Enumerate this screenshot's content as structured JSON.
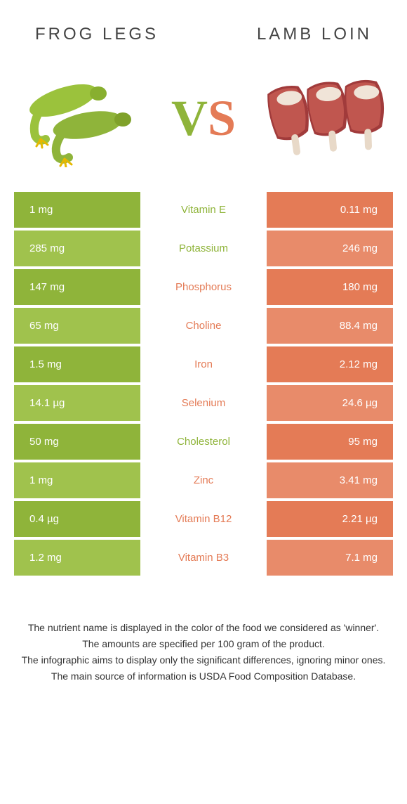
{
  "colors": {
    "green_dark": "#8fb43a",
    "green_light": "#a0c24d",
    "orange_dark": "#e47b56",
    "orange_light": "#e88b6a",
    "text": "#444444"
  },
  "header": {
    "left": "Frog legs",
    "right": "Lamb loin"
  },
  "vs": {
    "v": "V",
    "s": "S"
  },
  "rows": [
    {
      "left": "1 mg",
      "mid": "Vitamin E",
      "right": "0.11 mg",
      "winner": "left"
    },
    {
      "left": "285 mg",
      "mid": "Potassium",
      "right": "246 mg",
      "winner": "left"
    },
    {
      "left": "147 mg",
      "mid": "Phosphorus",
      "right": "180 mg",
      "winner": "right"
    },
    {
      "left": "65 mg",
      "mid": "Choline",
      "right": "88.4 mg",
      "winner": "right"
    },
    {
      "left": "1.5 mg",
      "mid": "Iron",
      "right": "2.12 mg",
      "winner": "right"
    },
    {
      "left": "14.1 µg",
      "mid": "Selenium",
      "right": "24.6 µg",
      "winner": "right"
    },
    {
      "left": "50 mg",
      "mid": "Cholesterol",
      "right": "95 mg",
      "winner": "left"
    },
    {
      "left": "1 mg",
      "mid": "Zinc",
      "right": "3.41 mg",
      "winner": "right"
    },
    {
      "left": "0.4 µg",
      "mid": "Vitamin B12",
      "right": "2.21 µg",
      "winner": "right"
    },
    {
      "left": "1.2 mg",
      "mid": "Vitamin B3",
      "right": "7.1 mg",
      "winner": "right"
    }
  ],
  "footer": {
    "l1": "The nutrient name is displayed in the color of the food we considered as 'winner'.",
    "l2": "The amounts are specified per 100 gram of the product.",
    "l3": "The infographic aims to display only the significant differences, ignoring minor ones.",
    "l4": "The main source of information is USDA Food Composition Database."
  }
}
